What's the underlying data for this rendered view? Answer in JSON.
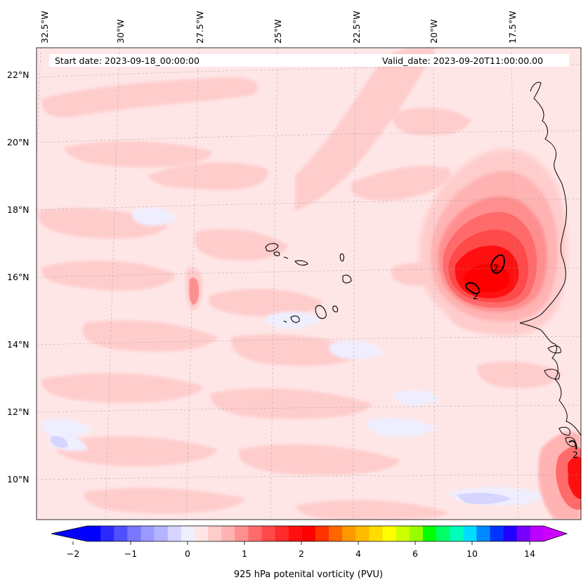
{
  "header": {
    "start_date": "Start date: 2023-09-18_00:00:00",
    "valid_date": "Valid_date: 2023-09-20T11:00:00.00"
  },
  "map": {
    "lon_labels": [
      "32.5°W",
      "30°W",
      "27.5°W",
      "25°W",
      "22.5°W",
      "20°W",
      "17.5°W"
    ],
    "lat_labels": [
      "22°N",
      "20°N",
      "18°N",
      "16°N",
      "14°N",
      "12°N",
      "10°N"
    ],
    "contour_label": "2",
    "background_color": "#ffe6e6",
    "gridline_style": "dashed-gray"
  },
  "colorbar": {
    "label": "925 hPa potenital vorticity (PVU)",
    "tick_labels": [
      "−2",
      "−1",
      "0",
      "1",
      "2",
      "4",
      "6",
      "10",
      "14"
    ],
    "colors": [
      "#0000ff",
      "#2a2aff",
      "#5050ff",
      "#7777ff",
      "#9999ff",
      "#b3b3ff",
      "#d5d5ff",
      "#eeeeff",
      "#ffe6e6",
      "#ffcccc",
      "#ffb3b3",
      "#ff8f8f",
      "#ff6b6b",
      "#ff4a4a",
      "#ff2b2b",
      "#ff1010",
      "#ff0000",
      "#ff3300",
      "#ff6600",
      "#ff9900",
      "#ffbb00",
      "#ffdd00",
      "#ffff00",
      "#ccff00",
      "#99ff00",
      "#00ff00",
      "#00ff66",
      "#00ffbb",
      "#00ddff",
      "#0088ff",
      "#0033ff",
      "#2200ff",
      "#7700ff",
      "#bb00ff"
    ],
    "under_color": "#0000ff",
    "over_color": "#cc00ff"
  }
}
